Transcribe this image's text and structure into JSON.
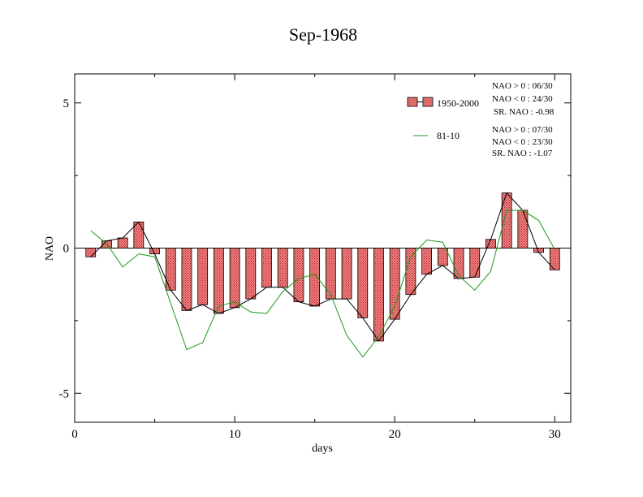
{
  "chart_data": {
    "type": "bar",
    "title": "Sep-1968",
    "xlabel": "days",
    "ylabel": "NAO",
    "xlim": [
      0,
      31
    ],
    "ylim": [
      -6,
      6
    ],
    "xticks": [
      0,
      10,
      20,
      30
    ],
    "yticks": [
      -5,
      0,
      5
    ],
    "x": [
      1,
      2,
      3,
      4,
      5,
      6,
      7,
      8,
      9,
      10,
      11,
      12,
      13,
      14,
      15,
      16,
      17,
      18,
      19,
      20,
      21,
      22,
      23,
      24,
      25,
      26,
      27,
      28,
      29,
      30
    ],
    "series": [
      {
        "name": "1950-2000",
        "type": "bar",
        "values": [
          -0.3,
          0.25,
          0.35,
          0.9,
          -0.2,
          -1.45,
          -2.15,
          -1.95,
          -2.25,
          -2.05,
          -1.75,
          -1.35,
          -1.35,
          -1.85,
          -2.0,
          -1.75,
          -1.75,
          -2.4,
          -3.2,
          -2.45,
          -1.6,
          -0.9,
          -0.6,
          -1.05,
          -1.0,
          0.3,
          1.9,
          1.3,
          -0.15,
          -0.75
        ]
      },
      {
        "name": "81-10",
        "type": "line",
        "values": [
          0.6,
          0.15,
          -0.65,
          -0.2,
          -0.3,
          -1.9,
          -3.5,
          -3.25,
          -2.0,
          -1.85,
          -2.2,
          -2.25,
          -1.5,
          -1.05,
          -0.9,
          -1.6,
          -3.0,
          -3.75,
          -3.05,
          -2.0,
          -0.3,
          0.28,
          0.2,
          -0.95,
          -1.45,
          -0.8,
          1.3,
          1.3,
          0.95,
          -0.05
        ]
      }
    ],
    "legend": {
      "position": "top-right",
      "entries": [
        "1950-2000",
        "81-10"
      ]
    },
    "annotations": {
      "set1": [
        "NAO > 0 : 06/30",
        "NAO < 0 : 24/30",
        "SR. NAO : -0.98"
      ],
      "set2": [
        "NAO > 0 : 07/30",
        "NAO < 0 : 23/30",
        "SR. NAO : -1.07"
      ]
    },
    "colors": {
      "bar_fill": "#f08080",
      "bar_hatch": "#a02020",
      "line_8110": "#1a9a1a",
      "line_bars": "#000000"
    }
  }
}
